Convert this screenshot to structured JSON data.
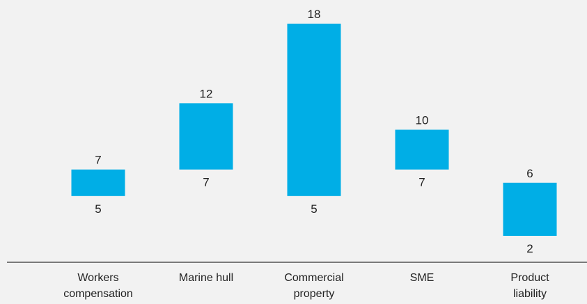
{
  "chart_data": {
    "type": "bar",
    "subtype": "floating-range",
    "categories": [
      [
        "Workers",
        "compensation"
      ],
      [
        "Marine hull"
      ],
      [
        "Commercial",
        "property"
      ],
      [
        "SME"
      ],
      [
        "Product",
        "liability"
      ]
    ],
    "series": [
      {
        "low": [
          5,
          7,
          5,
          7,
          2
        ],
        "high": [
          7,
          12,
          18,
          10,
          6
        ]
      }
    ],
    "title": "",
    "xlabel": "",
    "ylabel": "",
    "ylim": [
      2,
      18
    ],
    "grid": false,
    "legend": "none",
    "colors": {
      "bar": "#00aee6",
      "axis": "#333333",
      "background": "#f2f2f2",
      "text": "#222222"
    }
  }
}
